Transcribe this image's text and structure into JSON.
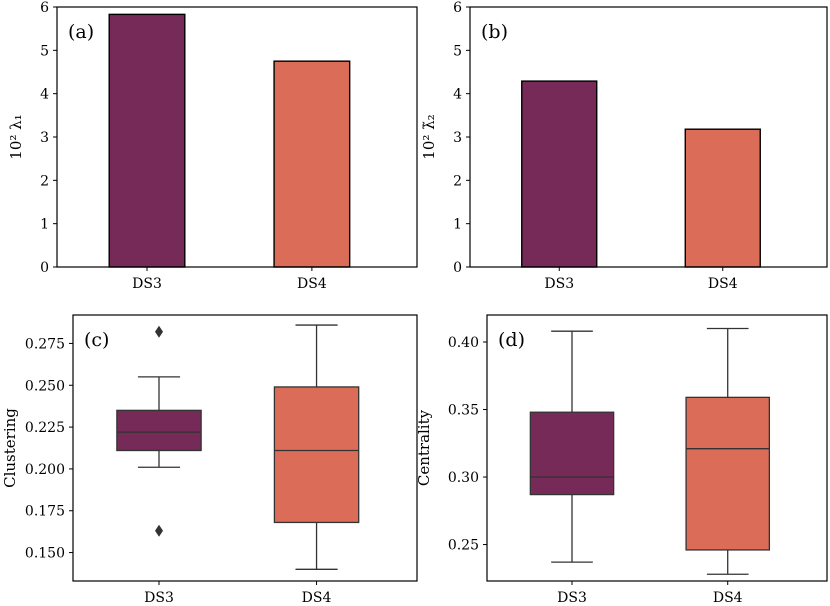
{
  "colors": {
    "ds3": "#752a58",
    "ds4": "#db6d58",
    "edge": "#000000",
    "whisker": "#333333"
  },
  "chart_data": [
    {
      "type": "bar",
      "panel_label": "(a)",
      "ylabel": "10² λ₁",
      "categories": [
        "DS3",
        "DS4"
      ],
      "values": [
        5.83,
        4.75
      ],
      "ylim": [
        0,
        6
      ],
      "yticks": [
        "0",
        "1",
        "2",
        "3",
        "4",
        "5",
        "6"
      ],
      "grid": false
    },
    {
      "type": "bar",
      "panel_label": "(b)",
      "ylabel": "10² λ̃₂",
      "categories": [
        "DS3",
        "DS4"
      ],
      "values": [
        4.29,
        3.18
      ],
      "ylim": [
        0,
        6
      ],
      "yticks": [
        "0",
        "1",
        "2",
        "3",
        "4",
        "5",
        "6"
      ],
      "grid": false
    },
    {
      "type": "box",
      "panel_label": "(c)",
      "ylabel": "Clustering",
      "categories": [
        "DS3",
        "DS4"
      ],
      "boxes": [
        {
          "whislo": 0.201,
          "q1": 0.211,
          "med": 0.222,
          "q3": 0.235,
          "whishi": 0.255,
          "fliers": [
            0.282,
            0.163
          ]
        },
        {
          "whislo": 0.14,
          "q1": 0.168,
          "med": 0.211,
          "q3": 0.249,
          "whishi": 0.286,
          "fliers": []
        }
      ],
      "ylim": [
        0.133,
        0.292
      ],
      "yticks": [
        "0.150",
        "0.175",
        "0.200",
        "0.225",
        "0.250",
        "0.275"
      ],
      "grid": false
    },
    {
      "type": "box",
      "panel_label": "(d)",
      "ylabel": "Centrality",
      "categories": [
        "DS3",
        "DS4"
      ],
      "boxes": [
        {
          "whislo": 0.237,
          "q1": 0.287,
          "med": 0.3,
          "q3": 0.348,
          "whishi": 0.408,
          "fliers": []
        },
        {
          "whislo": 0.228,
          "q1": 0.246,
          "med": 0.321,
          "q3": 0.359,
          "whishi": 0.41,
          "fliers": []
        }
      ],
      "ylim": [
        0.223,
        0.42
      ],
      "yticks": [
        "0.25",
        "0.30",
        "0.35",
        "0.40"
      ],
      "grid": false
    }
  ]
}
